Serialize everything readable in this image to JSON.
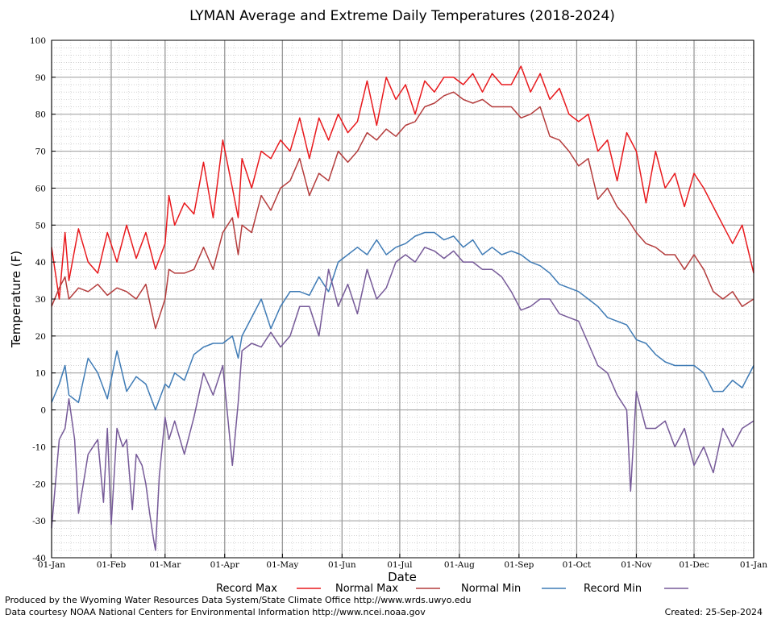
{
  "chart_data": {
    "type": "line",
    "title": "LYMAN Average and Extreme Daily Temperatures (2018-2024)",
    "xlabel": "Date",
    "ylabel": "Temperature (F)",
    "ylim": [
      -40,
      100
    ],
    "yticks": [
      -40,
      -30,
      -20,
      -10,
      0,
      10,
      20,
      30,
      40,
      50,
      60,
      70,
      80,
      90,
      100
    ],
    "xlim_days": [
      1,
      366
    ],
    "month_ticks": [
      {
        "label": "01-Jan",
        "day": 1
      },
      {
        "label": "01-Feb",
        "day": 32
      },
      {
        "label": "01-Mar",
        "day": 60
      },
      {
        "label": "01-Apr",
        "day": 91
      },
      {
        "label": "01-May",
        "day": 121
      },
      {
        "label": "01-Jun",
        "day": 152
      },
      {
        "label": "01-Jul",
        "day": 182
      },
      {
        "label": "01-Aug",
        "day": 213
      },
      {
        "label": "01-Sep",
        "day": 244
      },
      {
        "label": "01-Oct",
        "day": 274
      },
      {
        "label": "01-Nov",
        "day": 305
      },
      {
        "label": "01-Dec",
        "day": 335
      },
      {
        "label": "01-Jan",
        "day": 366
      }
    ],
    "grid": true,
    "legend_position": "bottom",
    "series": [
      {
        "name": "Record Max",
        "color": "#e8191d",
        "x": [
          1,
          5,
          8,
          10,
          15,
          20,
          25,
          30,
          35,
          40,
          45,
          50,
          55,
          60,
          62,
          65,
          70,
          75,
          80,
          85,
          90,
          95,
          98,
          100,
          105,
          110,
          115,
          120,
          125,
          130,
          135,
          140,
          145,
          150,
          155,
          160,
          165,
          170,
          175,
          180,
          185,
          190,
          195,
          200,
          205,
          210,
          215,
          220,
          225,
          230,
          235,
          240,
          245,
          250,
          255,
          260,
          265,
          270,
          275,
          280,
          285,
          290,
          295,
          300,
          305,
          310,
          315,
          320,
          325,
          330,
          335,
          340,
          345,
          350,
          355,
          360,
          366
        ],
        "y": [
          44,
          30,
          48,
          35,
          49,
          40,
          37,
          48,
          40,
          50,
          41,
          48,
          38,
          45,
          58,
          50,
          56,
          53,
          67,
          52,
          73,
          60,
          52,
          68,
          60,
          70,
          68,
          73,
          70,
          79,
          68,
          79,
          73,
          80,
          75,
          78,
          89,
          77,
          90,
          84,
          88,
          80,
          89,
          86,
          90,
          90,
          88,
          91,
          86,
          91,
          88,
          88,
          93,
          86,
          91,
          84,
          87,
          80,
          78,
          80,
          70,
          73,
          62,
          75,
          70,
          56,
          70,
          60,
          64,
          55,
          64,
          60,
          55,
          50,
          45,
          50,
          37
        ]
      },
      {
        "name": "Normal Max",
        "color": "#b43c3c",
        "x": [
          1,
          5,
          8,
          10,
          15,
          20,
          25,
          30,
          35,
          40,
          45,
          50,
          55,
          60,
          62,
          65,
          70,
          75,
          80,
          85,
          90,
          95,
          98,
          100,
          105,
          110,
          115,
          120,
          125,
          130,
          135,
          140,
          145,
          150,
          155,
          160,
          165,
          170,
          175,
          180,
          185,
          190,
          195,
          200,
          205,
          210,
          215,
          220,
          225,
          230,
          235,
          240,
          245,
          250,
          255,
          260,
          265,
          270,
          275,
          280,
          285,
          290,
          295,
          300,
          305,
          310,
          315,
          320,
          325,
          330,
          335,
          340,
          345,
          350,
          355,
          360,
          366
        ],
        "y": [
          28,
          33,
          36,
          30,
          33,
          32,
          34,
          31,
          33,
          32,
          30,
          34,
          22,
          30,
          38,
          37,
          37,
          38,
          44,
          38,
          48,
          52,
          42,
          50,
          48,
          58,
          54,
          60,
          62,
          68,
          58,
          64,
          62,
          70,
          67,
          70,
          75,
          73,
          76,
          74,
          77,
          78,
          82,
          83,
          85,
          86,
          84,
          83,
          84,
          82,
          82,
          82,
          79,
          80,
          82,
          74,
          73,
          70,
          66,
          68,
          57,
          60,
          55,
          52,
          48,
          45,
          44,
          42,
          42,
          38,
          42,
          38,
          32,
          30,
          32,
          28,
          30
        ]
      },
      {
        "name": "Normal Min",
        "color": "#3f7bb5",
        "x": [
          1,
          5,
          8,
          10,
          15,
          20,
          25,
          30,
          35,
          40,
          45,
          50,
          55,
          60,
          62,
          65,
          70,
          75,
          80,
          85,
          90,
          95,
          98,
          100,
          105,
          110,
          115,
          120,
          125,
          130,
          135,
          140,
          145,
          150,
          155,
          160,
          165,
          170,
          175,
          180,
          185,
          190,
          195,
          200,
          205,
          210,
          215,
          220,
          225,
          230,
          235,
          240,
          245,
          250,
          255,
          260,
          265,
          270,
          275,
          280,
          285,
          290,
          295,
          300,
          305,
          310,
          315,
          320,
          325,
          330,
          335,
          340,
          345,
          350,
          355,
          360,
          366
        ],
        "y": [
          2,
          7,
          12,
          4,
          2,
          14,
          10,
          3,
          16,
          5,
          9,
          7,
          0,
          7,
          6,
          10,
          8,
          15,
          17,
          18,
          18,
          20,
          14,
          20,
          25,
          30,
          22,
          28,
          32,
          32,
          31,
          36,
          32,
          40,
          42,
          44,
          42,
          46,
          42,
          44,
          45,
          47,
          48,
          48,
          46,
          47,
          44,
          46,
          42,
          44,
          42,
          43,
          42,
          40,
          39,
          37,
          34,
          33,
          32,
          30,
          28,
          25,
          24,
          23,
          19,
          18,
          15,
          13,
          12,
          12,
          12,
          10,
          5,
          5,
          8,
          6,
          12
        ]
      },
      {
        "name": "Record Min",
        "color": "#765a98",
        "x": [
          1,
          5,
          8,
          10,
          13,
          15,
          20,
          25,
          28,
          30,
          32,
          35,
          38,
          40,
          43,
          45,
          48,
          50,
          52,
          54,
          55,
          57,
          60,
          62,
          65,
          70,
          75,
          80,
          85,
          90,
          95,
          98,
          100,
          105,
          110,
          115,
          120,
          125,
          130,
          135,
          140,
          145,
          150,
          155,
          160,
          165,
          170,
          175,
          180,
          185,
          190,
          195,
          200,
          205,
          210,
          215,
          220,
          225,
          230,
          235,
          240,
          245,
          250,
          255,
          260,
          265,
          270,
          275,
          280,
          285,
          290,
          295,
          300,
          302,
          305,
          310,
          315,
          320,
          325,
          330,
          335,
          340,
          345,
          350,
          355,
          360,
          366
        ],
        "y": [
          -32,
          -8,
          -5,
          3,
          -8,
          -28,
          -12,
          -8,
          -25,
          -5,
          -31,
          -5,
          -10,
          -8,
          -27,
          -12,
          -15,
          -20,
          -28,
          -35,
          -38,
          -18,
          -2,
          -8,
          -3,
          -12,
          -2,
          10,
          4,
          12,
          -15,
          2,
          16,
          18,
          17,
          21,
          17,
          20,
          28,
          28,
          20,
          38,
          28,
          34,
          26,
          38,
          30,
          33,
          40,
          42,
          40,
          44,
          43,
          41,
          43,
          40,
          40,
          38,
          38,
          36,
          32,
          27,
          28,
          30,
          30,
          26,
          25,
          24,
          18,
          12,
          10,
          4,
          0,
          -22,
          5,
          -5,
          -5,
          -3,
          -10,
          -5,
          -15,
          -10,
          -17,
          -5,
          -10,
          -5,
          -3
        ]
      }
    ]
  },
  "footer": {
    "line1": "Produced by the Wyoming Water Resources Data System/State Climate Office http://www.wrds.uwyo.edu",
    "line2": "Data courtesy NOAA National Centers for Environmental Information http://www.ncei.noaa.gov",
    "created": "Created:  25-Sep-2024"
  }
}
